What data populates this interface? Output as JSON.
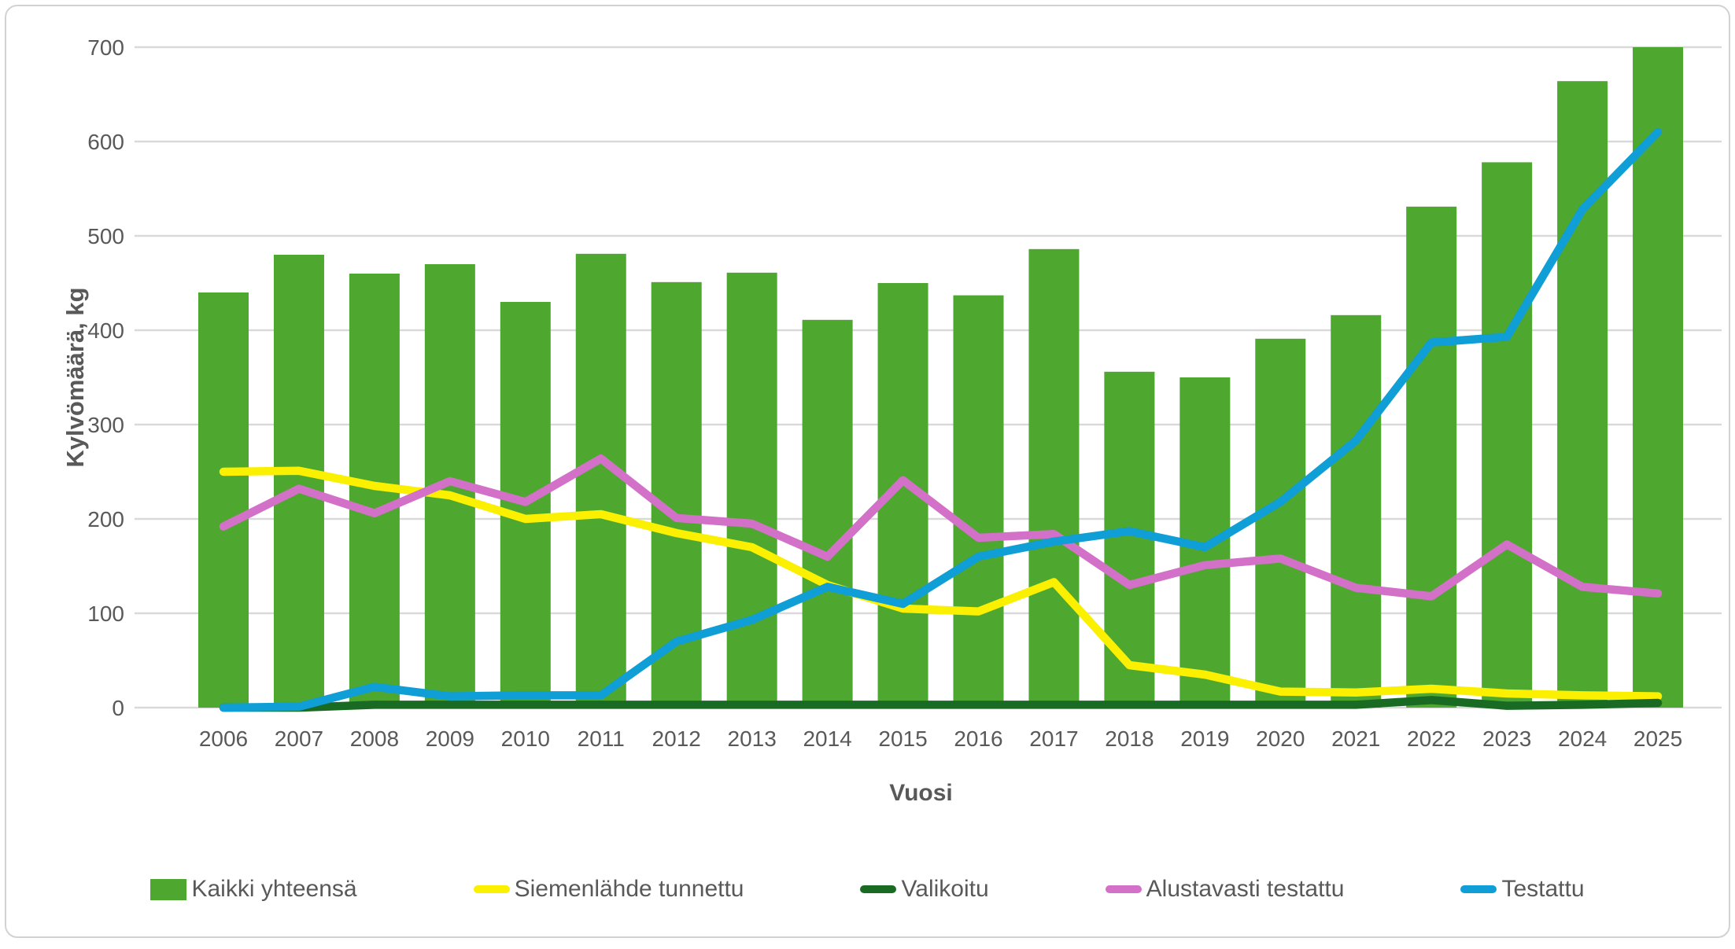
{
  "chart_data": {
    "type": "combo",
    "subtype": "bars-with-lines",
    "xlabel": "Vuosi",
    "ylabel": "Kylvömäärä, kg",
    "ylim": [
      0,
      700
    ],
    "ytick_step": 100,
    "yticks": [
      0,
      100,
      200,
      300,
      400,
      500,
      600,
      700
    ],
    "grid": true,
    "legend_position": "bottom",
    "axis_text_color": "#595959",
    "gridline_color": "#d9d9d9",
    "categories": [
      2006,
      2007,
      2008,
      2009,
      2010,
      2011,
      2012,
      2013,
      2014,
      2015,
      2016,
      2017,
      2018,
      2019,
      2020,
      2021,
      2022,
      2023,
      2024,
      2025
    ],
    "series": [
      {
        "name": "Kaikki yhteensä",
        "type": "bar",
        "color": "#4EA72E",
        "values": [
          440,
          480,
          460,
          470,
          430,
          481,
          451,
          461,
          411,
          450,
          437,
          486,
          356,
          350,
          391,
          416,
          531,
          578,
          664,
          700
        ]
      },
      {
        "name": "Siemenlähde tunnettu",
        "type": "line",
        "color": "#FAF000",
        "values": [
          250,
          251,
          235,
          225,
          200,
          205,
          185,
          170,
          130,
          105,
          102,
          133,
          45,
          35,
          17,
          16,
          20,
          15,
          13,
          12
        ]
      },
      {
        "name": "Valikoitu",
        "type": "line",
        "color": "#196B24",
        "values": [
          0,
          0,
          3,
          3,
          3,
          3,
          3,
          3,
          3,
          3,
          3,
          3,
          3,
          3,
          3,
          3,
          8,
          2,
          3,
          5
        ]
      },
      {
        "name": "Alustavasti testattu",
        "type": "line",
        "color": "#D370C8",
        "values": [
          192,
          232,
          206,
          240,
          218,
          264,
          201,
          195,
          160,
          241,
          180,
          184,
          130,
          151,
          158,
          127,
          118,
          173,
          128,
          121
        ]
      },
      {
        "name": "Testattu",
        "type": "line",
        "color": "#0F9ED5",
        "values": [
          0,
          1,
          22,
          12,
          13,
          13,
          70,
          93,
          128,
          110,
          160,
          176,
          187,
          170,
          218,
          283,
          387,
          393,
          528,
          610
        ]
      }
    ]
  }
}
